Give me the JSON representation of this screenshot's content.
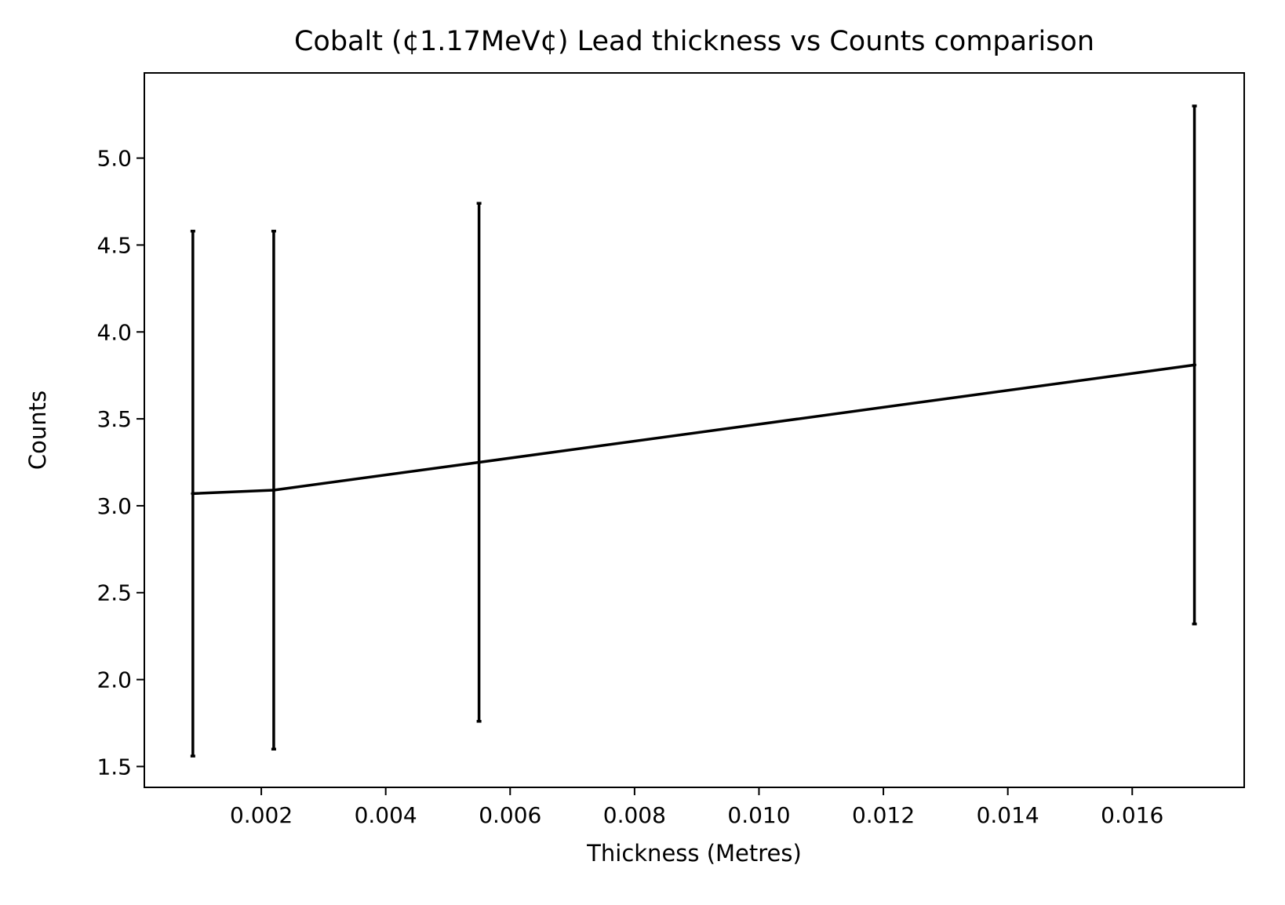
{
  "chart_data": {
    "type": "line",
    "title": "Cobalt (¢1.17MeV¢) Lead thickness vs Counts comparison",
    "xlabel": "Thickness (Metres)",
    "ylabel": "Counts",
    "xlim": [
      0.00012,
      0.0178
    ],
    "ylim": [
      1.38,
      5.49
    ],
    "xticks": [
      0.002,
      0.004,
      0.006,
      0.008,
      0.01,
      0.012,
      0.014,
      0.016
    ],
    "xtick_labels": [
      "0.002",
      "0.004",
      "0.006",
      "0.008",
      "0.010",
      "0.012",
      "0.014",
      "0.016"
    ],
    "yticks": [
      1.5,
      2.0,
      2.5,
      3.0,
      3.5,
      4.0,
      4.5,
      5.0
    ],
    "ytick_labels": [
      "1.5",
      "2.0",
      "2.5",
      "3.0",
      "3.5",
      "4.0",
      "4.5",
      "5.0"
    ],
    "grid": false,
    "legend": "none",
    "series": [
      {
        "x": [
          0.0009,
          0.0022,
          0.0055,
          0.017
        ],
        "y": [
          3.07,
          3.09,
          3.25,
          3.81
        ],
        "yerr": [
          1.51,
          1.49,
          1.49,
          1.49
        ],
        "color": "#000000"
      }
    ]
  }
}
